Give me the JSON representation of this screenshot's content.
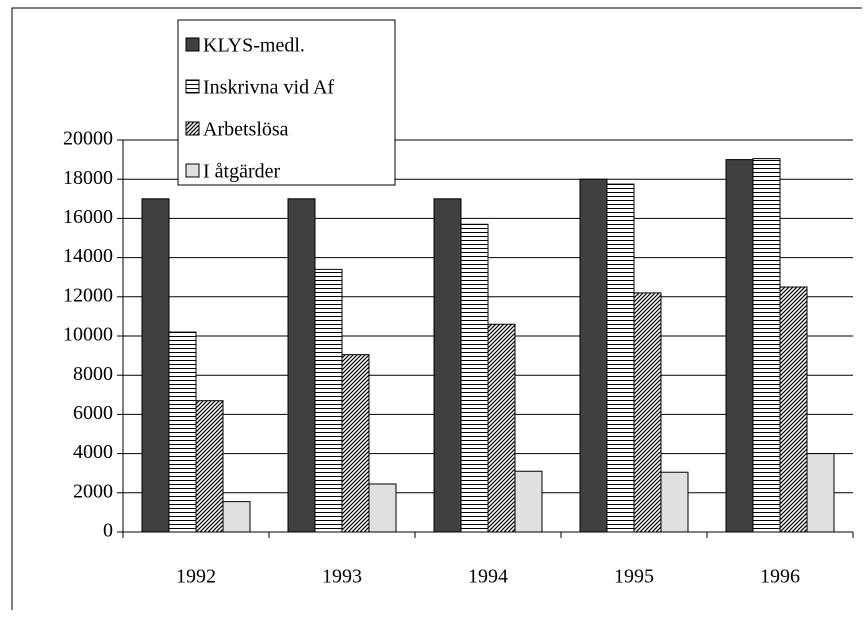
{
  "chart_data": {
    "type": "bar",
    "categories": [
      "1992",
      "1993",
      "1994",
      "1995",
      "1996"
    ],
    "series": [
      {
        "name": "KLYS-medl.",
        "color": "#404040",
        "pattern": "solid",
        "values": [
          17000,
          17000,
          17000,
          18000,
          19000
        ]
      },
      {
        "name": "Inskrivna vid Af",
        "color": "#000000",
        "pattern": "horizontal",
        "values": [
          10200,
          13400,
          15700,
          17750,
          19050
        ]
      },
      {
        "name": "Arbetslösa",
        "color": "#000000",
        "pattern": "diagonal",
        "values": [
          6700,
          9050,
          10600,
          12200,
          12500
        ]
      },
      {
        "name": "I åtgärder",
        "color": "#e0e0e0",
        "pattern": "solid",
        "values": [
          1550,
          2450,
          3100,
          3050,
          4000
        ]
      }
    ],
    "ylim": [
      0,
      20000
    ],
    "yticks": [
      0,
      2000,
      4000,
      6000,
      8000,
      10000,
      12000,
      14000,
      16000,
      18000,
      20000
    ],
    "grid": true,
    "legend": "top-left"
  }
}
